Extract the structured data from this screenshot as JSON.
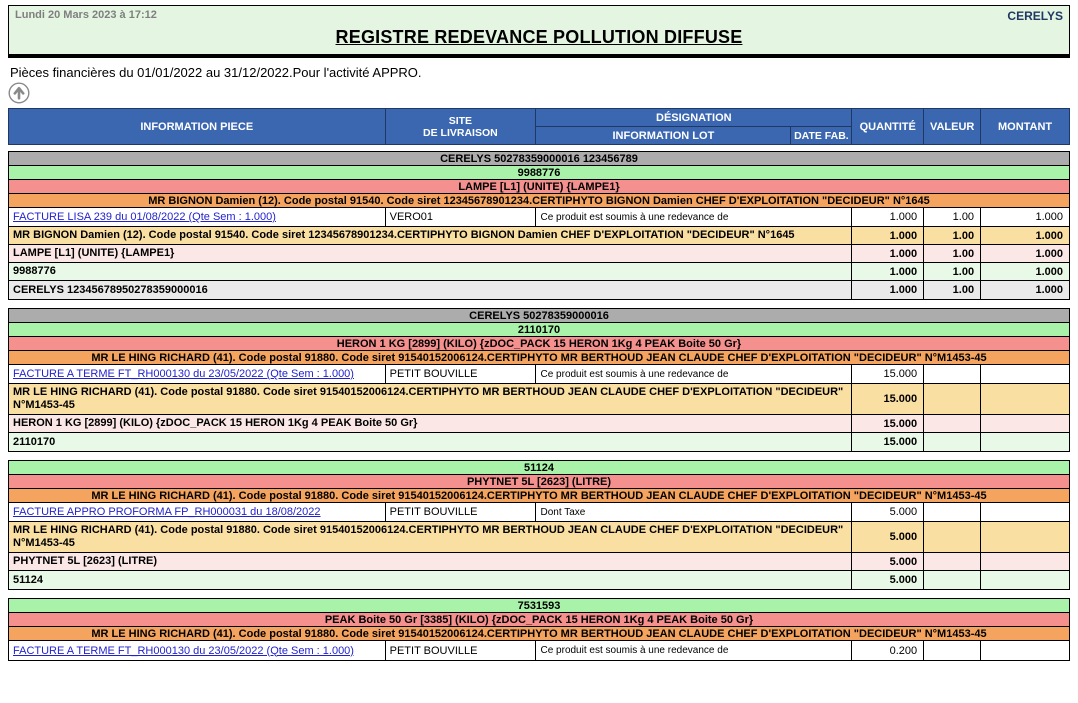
{
  "banner": {
    "datetime": "Lundi 20 Mars 2023 à 17:12",
    "company": "CERELYS",
    "title": "REGISTRE REDEVANCE POLLUTION DIFFUSE"
  },
  "subtitle": "Pièces financières  du 01/01/2022 au 31/12/2022.Pour l'activité APPRO.",
  "icons": {
    "scroll_top": "up-arrow-circle-icon"
  },
  "colors": {
    "banner_bg": "#E4F6E1",
    "header_bg": "#3B67B1",
    "header_border": "#1F3864",
    "band_gray": "#ACACAC",
    "band_green": "#A9F2A9",
    "band_pink": "#F4908D",
    "band_orange": "#F5A45F",
    "footer_gray": "#EAEAEA",
    "footer_green": "#E9F9E7",
    "footer_pink": "#FBE8E6",
    "footer_orange": "#FADFA3",
    "link_blue": "#2222CC",
    "date_gray": "#7F7F7F",
    "company_navy": "#1F3864"
  },
  "table": {
    "headers": {
      "information_piece": "INFORMATION PIECE",
      "site_line1": "SITE",
      "site_line2": "DE LIVRAISON",
      "designation": "DÉSIGNATION",
      "information_lot": "INFORMATION LOT",
      "date_fab": "DATE FAB.",
      "quantite": "QUANTITÉ",
      "valeur": "VALEUR",
      "montant": "MONTANT"
    },
    "blocks": [
      {
        "rows": [
          {
            "type": "band",
            "level": "gray",
            "text": "CERELYS 50278359000016 123456789"
          },
          {
            "type": "band",
            "level": "green",
            "text": "9988776"
          },
          {
            "type": "band",
            "level": "pink",
            "text": "LAMPE [L1] (UNITE) {LAMPE1}"
          },
          {
            "type": "band",
            "level": "orange",
            "text": "MR BIGNON Damien (12). Code postal 91540. Code siret 12345678901234.CERTIPHYTO BIGNON Damien CHEF D'EXPLOITATION \"DECIDEUR\" N°1645"
          },
          {
            "type": "detail",
            "piece": "FACTURE LISA 239 du 01/08/2022 (Qte Sem : 1.000)",
            "site": "VERO01",
            "lot": "Ce produit est soumis à une redevance de",
            "qty": "1.000",
            "valeur": "1.00",
            "montant": "1.000"
          },
          {
            "type": "footer",
            "level": "orange",
            "text": "MR BIGNON Damien (12). Code postal 91540. Code siret 12345678901234.CERTIPHYTO BIGNON Damien CHEF D'EXPLOITATION \"DECIDEUR\" N°1645",
            "qty": "1.000",
            "valeur": "1.00",
            "montant": "1.000"
          },
          {
            "type": "footer",
            "level": "pink",
            "text": "LAMPE [L1] (UNITE) {LAMPE1}",
            "qty": "1.000",
            "valeur": "1.00",
            "montant": "1.000"
          },
          {
            "type": "footer",
            "level": "green",
            "text": "9988776",
            "qty": "1.000",
            "valeur": "1.00",
            "montant": "1.000"
          },
          {
            "type": "footer",
            "level": "gray",
            "text": "CERELYS 12345678950278359000016",
            "qty": "1.000",
            "valeur": "1.00",
            "montant": "1.000"
          }
        ]
      },
      {
        "rows": [
          {
            "type": "band",
            "level": "gray",
            "text": "CERELYS 50278359000016"
          },
          {
            "type": "band",
            "level": "green",
            "text": "2110170"
          },
          {
            "type": "band",
            "level": "pink",
            "text": "HERON 1 KG [2899] (KILO) {zDOC_PACK 15 HERON 1Kg  4 PEAK Boite 50 Gr}"
          },
          {
            "type": "band",
            "level": "orange",
            "text": "MR LE HING RICHARD (41). Code postal 91880. Code siret 91540152006124.CERTIPHYTO MR BERTHOUD JEAN CLAUDE CHEF D'EXPLOITATION \"DECIDEUR\" N°M1453-45"
          },
          {
            "type": "detail",
            "piece": "FACTURE A TERME FT_RH000130 du 23/05/2022 (Qte Sem : 1.000)",
            "site": "PETIT BOUVILLE",
            "lot": "Ce produit est soumis à une redevance de",
            "qty": "15.000",
            "valeur": "",
            "montant": ""
          },
          {
            "type": "footer",
            "level": "orange",
            "text": "MR LE HING RICHARD (41). Code postal 91880. Code siret 91540152006124.CERTIPHYTO MR BERTHOUD JEAN CLAUDE CHEF D'EXPLOITATION \"DECIDEUR\" N°M1453-45",
            "qty": "15.000",
            "valeur": "",
            "montant": ""
          },
          {
            "type": "footer",
            "level": "pink",
            "text": "HERON 1 KG [2899] (KILO) {zDOC_PACK 15 HERON 1Kg  4 PEAK Boite 50 Gr}",
            "qty": "15.000",
            "valeur": "",
            "montant": ""
          },
          {
            "type": "footer",
            "level": "green",
            "text": "2110170",
            "qty": "15.000",
            "valeur": "",
            "montant": ""
          }
        ]
      },
      {
        "rows": [
          {
            "type": "band",
            "level": "green",
            "text": "51124"
          },
          {
            "type": "band",
            "level": "pink",
            "text": "PHYTNET 5L [2623] (LITRE)"
          },
          {
            "type": "band",
            "level": "orange",
            "text": "MR LE HING RICHARD (41). Code postal 91880. Code siret 91540152006124.CERTIPHYTO MR BERTHOUD JEAN CLAUDE CHEF D'EXPLOITATION \"DECIDEUR\" N°M1453-45"
          },
          {
            "type": "detail",
            "piece": "FACTURE APPRO PROFORMA FP_RH000031 du 18/08/2022",
            "site": "PETIT BOUVILLE",
            "lot": "Dont Taxe",
            "qty": "5.000",
            "valeur": "",
            "montant": ""
          },
          {
            "type": "footer",
            "level": "orange",
            "text": "MR LE HING RICHARD (41). Code postal 91880. Code siret 91540152006124.CERTIPHYTO MR BERTHOUD JEAN CLAUDE CHEF D'EXPLOITATION \"DECIDEUR\" N°M1453-45",
            "qty": "5.000",
            "valeur": "",
            "montant": ""
          },
          {
            "type": "footer",
            "level": "pink",
            "text": "PHYTNET 5L [2623] (LITRE)",
            "qty": "5.000",
            "valeur": "",
            "montant": ""
          },
          {
            "type": "footer",
            "level": "green",
            "text": "51124",
            "qty": "5.000",
            "valeur": "",
            "montant": ""
          }
        ]
      },
      {
        "rows": [
          {
            "type": "band",
            "level": "green",
            "text": "7531593"
          },
          {
            "type": "band",
            "level": "pink",
            "text": "PEAK Boite 50 Gr [3385] (KILO) {zDOC_PACK 15 HERON 1Kg  4 PEAK Boite 50 Gr}"
          },
          {
            "type": "band",
            "level": "orange",
            "text": "MR LE HING RICHARD (41). Code postal 91880. Code siret 91540152006124.CERTIPHYTO MR BERTHOUD JEAN CLAUDE CHEF D'EXPLOITATION \"DECIDEUR\" N°M1453-45"
          },
          {
            "type": "detail",
            "piece": "FACTURE A TERME FT_RH000130 du 23/05/2022 (Qte Sem : 1.000)",
            "site": "PETIT BOUVILLE",
            "lot": "Ce produit est soumis à une redevance de",
            "qty": "0.200",
            "valeur": "",
            "montant": ""
          }
        ]
      }
    ]
  }
}
